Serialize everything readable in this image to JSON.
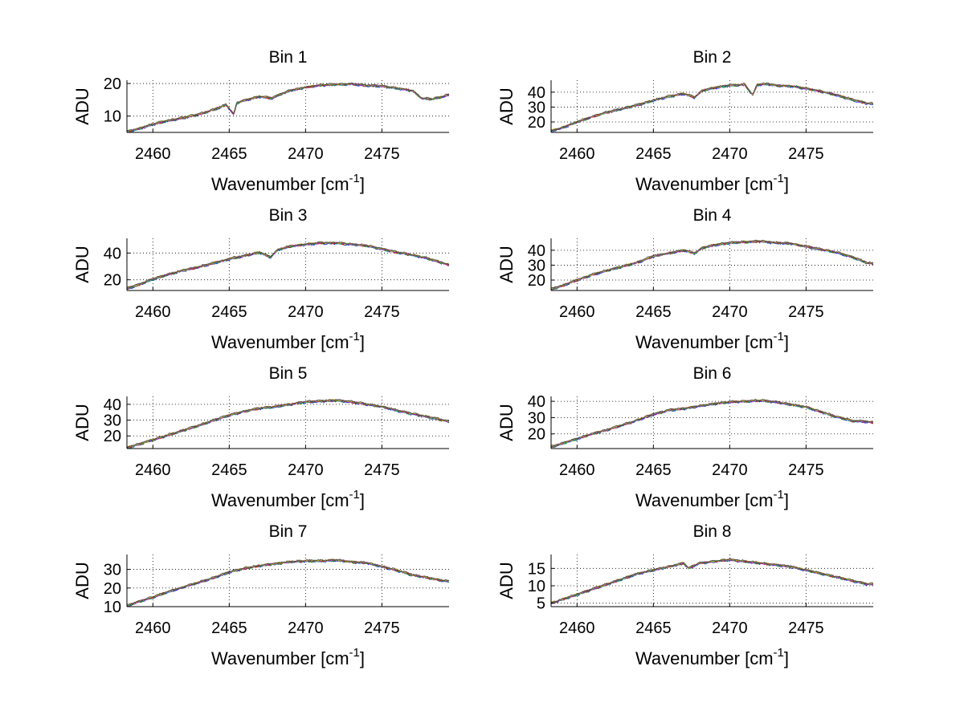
{
  "figure": {
    "background": "#ffffff",
    "line_colors": [
      "#0000ff",
      "#00aa00",
      "#ff0000",
      "#00bfbf",
      "#bf00bf",
      "#bfbf00",
      "#404040"
    ]
  },
  "chart_data": [
    {
      "type": "line",
      "title": "Bin 1",
      "xlabel_main": "Wavenumber [cm",
      "xlabel_sup": "-1",
      "xlabel_close": "]",
      "ylabel": "ADU",
      "xlim": [
        2458.3,
        2479.4
      ],
      "ylim": [
        5,
        21
      ],
      "xticks": [
        2460,
        2465,
        2470,
        2475
      ],
      "yticks": [
        10,
        20
      ],
      "grid": true,
      "series_count": 7,
      "x": [
        2458.3,
        2459,
        2460,
        2461,
        2462,
        2463,
        2464,
        2464.8,
        2465.3,
        2465.5,
        2466,
        2467,
        2467.8,
        2468.5,
        2469,
        2470,
        2471,
        2472,
        2473,
        2474,
        2475,
        2476,
        2477,
        2477.6,
        2478.3,
        2479,
        2479.4
      ],
      "y": [
        5.3,
        6,
        7.5,
        8.6,
        9.5,
        10.5,
        12,
        13.5,
        10.5,
        14,
        14.8,
        16,
        15.5,
        17,
        17.8,
        18.8,
        19.5,
        19.7,
        19.8,
        19.4,
        19.2,
        18.5,
        17.8,
        15.5,
        15.2,
        16,
        16.6
      ]
    },
    {
      "type": "line",
      "title": "Bin 2",
      "xlabel_main": "Wavenumber [cm",
      "xlabel_sup": "-1",
      "xlabel_close": "]",
      "ylabel": "ADU",
      "xlim": [
        2458.3,
        2479.4
      ],
      "ylim": [
        13,
        48
      ],
      "xticks": [
        2460,
        2465,
        2470,
        2475
      ],
      "yticks": [
        20,
        30,
        40
      ],
      "grid": true,
      "series_count": 7,
      "x": [
        2458.3,
        2459,
        2460,
        2461,
        2462,
        2463,
        2464,
        2465,
        2466,
        2467,
        2467.7,
        2468.2,
        2469,
        2470,
        2471,
        2471.5,
        2471.8,
        2472.5,
        2473,
        2474,
        2475,
        2476,
        2477,
        2478,
        2479,
        2479.4
      ],
      "y": [
        14,
        16,
        20,
        23.5,
        26.5,
        29,
        31.5,
        34.5,
        37,
        39,
        36.5,
        41,
        43,
        44.5,
        45,
        38,
        45,
        45.5,
        44.5,
        44,
        42.5,
        40.5,
        38,
        35,
        32.5,
        32
      ]
    },
    {
      "type": "line",
      "title": "Bin 3",
      "xlabel_main": "Wavenumber [cm",
      "xlabel_sup": "-1",
      "xlabel_close": "]",
      "ylabel": "ADU",
      "xlim": [
        2458.3,
        2479.4
      ],
      "ylim": [
        12,
        51
      ],
      "xticks": [
        2460,
        2465,
        2470,
        2475
      ],
      "yticks": [
        20,
        40
      ],
      "grid": true,
      "series_count": 7,
      "x": [
        2458.3,
        2459,
        2460,
        2461,
        2462,
        2463,
        2464,
        2465,
        2466,
        2467,
        2467.7,
        2468.2,
        2469,
        2470,
        2471,
        2472,
        2473,
        2474,
        2475,
        2476,
        2477,
        2478,
        2479,
        2479.4
      ],
      "y": [
        13.5,
        16,
        20.5,
        24,
        27,
        29.5,
        32.5,
        35.5,
        38,
        40.5,
        37,
        42.5,
        45,
        46.5,
        47.5,
        47.5,
        46.5,
        45.5,
        43,
        40.5,
        38.5,
        36,
        32.5,
        31
      ]
    },
    {
      "type": "line",
      "title": "Bin 4",
      "xlabel_main": "Wavenumber [cm",
      "xlabel_sup": "-1",
      "xlabel_close": "]",
      "ylabel": "ADU",
      "xlim": [
        2458.3,
        2479.4
      ],
      "ylim": [
        13,
        48
      ],
      "xticks": [
        2460,
        2465,
        2470,
        2475
      ],
      "yticks": [
        20,
        30,
        40
      ],
      "grid": true,
      "series_count": 7,
      "x": [
        2458.3,
        2459,
        2460,
        2461,
        2462,
        2463,
        2464,
        2465,
        2466,
        2467,
        2467.7,
        2468.2,
        2469,
        2470,
        2471,
        2472,
        2473,
        2474,
        2475,
        2476,
        2477,
        2478,
        2479,
        2479.4
      ],
      "y": [
        14,
        16,
        20,
        23.5,
        26.5,
        29,
        32,
        36,
        38,
        40,
        38,
        41.5,
        43.5,
        45,
        45.5,
        46,
        45,
        44.5,
        42.5,
        40.5,
        38.5,
        35.5,
        31.5,
        31
      ]
    },
    {
      "type": "line",
      "title": "Bin 5",
      "xlabel_main": "Wavenumber [cm",
      "xlabel_sup": "-1",
      "xlabel_close": "]",
      "ylabel": "ADU",
      "xlim": [
        2458.3,
        2479.4
      ],
      "ylim": [
        12,
        45
      ],
      "xticks": [
        2460,
        2465,
        2470,
        2475
      ],
      "yticks": [
        20,
        30,
        40
      ],
      "grid": true,
      "series_count": 7,
      "x": [
        2458.3,
        2459,
        2460,
        2461,
        2462,
        2463,
        2464,
        2465,
        2466,
        2467,
        2468,
        2469,
        2470,
        2471,
        2472,
        2473,
        2474,
        2475,
        2476,
        2477,
        2478,
        2479,
        2479.4
      ],
      "y": [
        12.5,
        14.5,
        17.5,
        20.5,
        23.5,
        26.5,
        30,
        33,
        35.5,
        37.5,
        38.5,
        40,
        41.5,
        42,
        42.5,
        41.5,
        40,
        38.5,
        36,
        34,
        32,
        30,
        29
      ]
    },
    {
      "type": "line",
      "title": "Bin 6",
      "xlabel_main": "Wavenumber [cm",
      "xlabel_sup": "-1",
      "xlabel_close": "]",
      "ylabel": "ADU",
      "xlim": [
        2458.3,
        2479.4
      ],
      "ylim": [
        11,
        43
      ],
      "xticks": [
        2460,
        2465,
        2470,
        2475
      ],
      "yticks": [
        20,
        30,
        40
      ],
      "grid": true,
      "series_count": 7,
      "x": [
        2458.3,
        2459,
        2460,
        2461,
        2462,
        2463,
        2464,
        2465,
        2466,
        2467,
        2468,
        2469,
        2470,
        2471,
        2472,
        2473,
        2474,
        2475,
        2476,
        2477,
        2478,
        2479,
        2479.4
      ],
      "y": [
        12,
        14,
        17,
        20,
        22.5,
        25.5,
        28.5,
        32,
        34.5,
        35.5,
        37,
        38.5,
        39.5,
        40,
        40.5,
        39.5,
        38,
        36.5,
        33.5,
        30.5,
        28,
        27.5,
        27
      ]
    },
    {
      "type": "line",
      "title": "Bin 7",
      "xlabel_main": "Wavenumber [cm",
      "xlabel_sup": "-1",
      "xlabel_close": "]",
      "ylabel": "ADU",
      "xlim": [
        2458.3,
        2479.4
      ],
      "ylim": [
        10,
        38
      ],
      "xticks": [
        2460,
        2465,
        2470,
        2475
      ],
      "yticks": [
        10,
        20,
        30
      ],
      "grid": true,
      "series_count": 7,
      "x": [
        2458.3,
        2459,
        2460,
        2461,
        2462,
        2463,
        2464,
        2465,
        2466,
        2467,
        2468,
        2469,
        2470,
        2471,
        2472,
        2473,
        2474,
        2475,
        2476,
        2477,
        2478,
        2479,
        2479.4
      ],
      "y": [
        10.5,
        12.5,
        15,
        18,
        20.5,
        23,
        25.5,
        28.5,
        30.5,
        32,
        33,
        34,
        34.5,
        34.5,
        35,
        34,
        33.5,
        31.5,
        29.5,
        27,
        25.5,
        24,
        23.5
      ]
    },
    {
      "type": "line",
      "title": "Bin 8",
      "xlabel_main": "Wavenumber [cm",
      "xlabel_sup": "-1",
      "xlabel_close": "]",
      "ylabel": "ADU",
      "xlim": [
        2458.3,
        2479.4
      ],
      "ylim": [
        4,
        19
      ],
      "xticks": [
        2460,
        2465,
        2470,
        2475
      ],
      "yticks": [
        5,
        10,
        15
      ],
      "grid": true,
      "series_count": 7,
      "x": [
        2458.3,
        2459,
        2460,
        2461,
        2462,
        2463,
        2464,
        2465,
        2466,
        2467,
        2467.3,
        2468,
        2469,
        2470,
        2471,
        2472,
        2473,
        2474,
        2475,
        2476,
        2477,
        2478,
        2479,
        2479.4
      ],
      "y": [
        5,
        6,
        7.5,
        9,
        10.5,
        12,
        13.5,
        14.5,
        15.5,
        16.5,
        15,
        16.5,
        17,
        17.5,
        17,
        16.5,
        16,
        15.5,
        14.5,
        13.5,
        12.5,
        11.5,
        10.5,
        10.5
      ]
    }
  ]
}
